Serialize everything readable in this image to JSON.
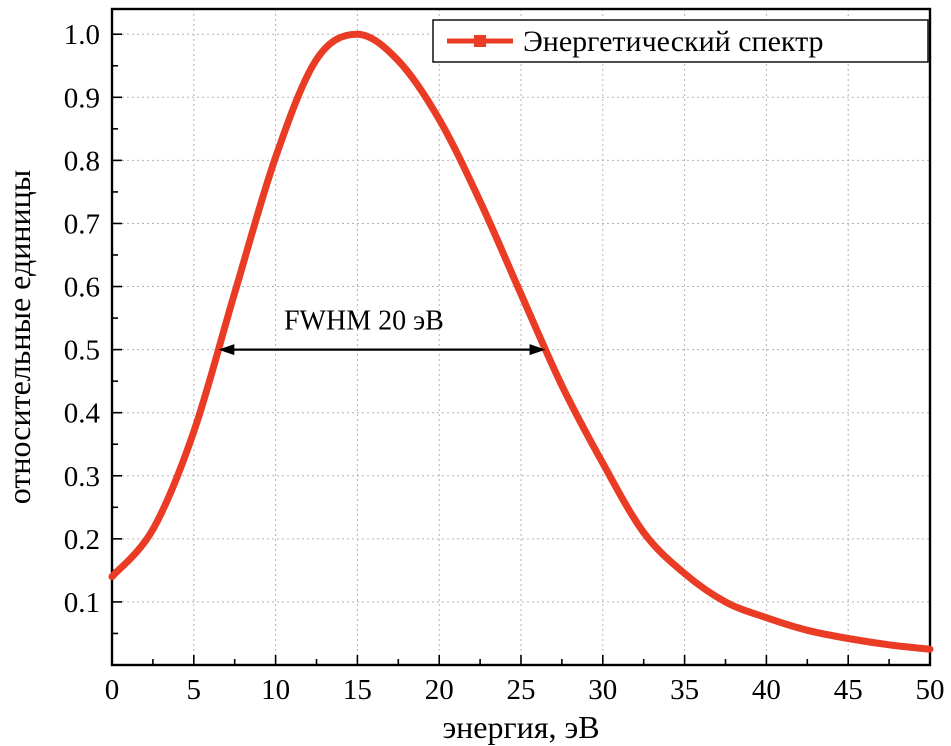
{
  "chart_data": {
    "type": "line",
    "title": "",
    "xlabel": "энергия, эВ",
    "ylabel": "относительные единицы",
    "xlim": [
      0,
      50
    ],
    "ylim": [
      0,
      1.04
    ],
    "xticks": [
      0,
      5,
      10,
      15,
      20,
      25,
      30,
      35,
      40,
      45,
      50
    ],
    "yticks": [
      0.1,
      0.2,
      0.3,
      0.4,
      0.5,
      0.6,
      0.7,
      0.8,
      0.9,
      1.0
    ],
    "grid": true,
    "legend": {
      "position": "top-right"
    },
    "colors": {
      "curve": "#ea3b24",
      "grid": "#b3b3b3",
      "axis": "#000000",
      "text": "#000000",
      "background": "#ffffff"
    },
    "series": [
      {
        "name": "Энергетический спектр",
        "color": "#ea3b24",
        "marker": "square",
        "x": [
          0,
          2.5,
          5,
          7.5,
          10,
          12.5,
          15,
          17.5,
          20,
          22.5,
          25,
          27.5,
          30,
          32.5,
          35,
          37.5,
          40,
          42.5,
          45,
          47.5,
          50
        ],
        "y": [
          0.14,
          0.215,
          0.37,
          0.59,
          0.805,
          0.96,
          1.0,
          0.958,
          0.865,
          0.735,
          0.588,
          0.443,
          0.32,
          0.21,
          0.145,
          0.1,
          0.075,
          0.055,
          0.042,
          0.032,
          0.025
        ]
      }
    ],
    "annotations": [
      {
        "type": "double-arrow",
        "text": "FWHM 20 эВ",
        "y": 0.5,
        "x_start": 6.5,
        "x_end": 26.5
      }
    ]
  }
}
